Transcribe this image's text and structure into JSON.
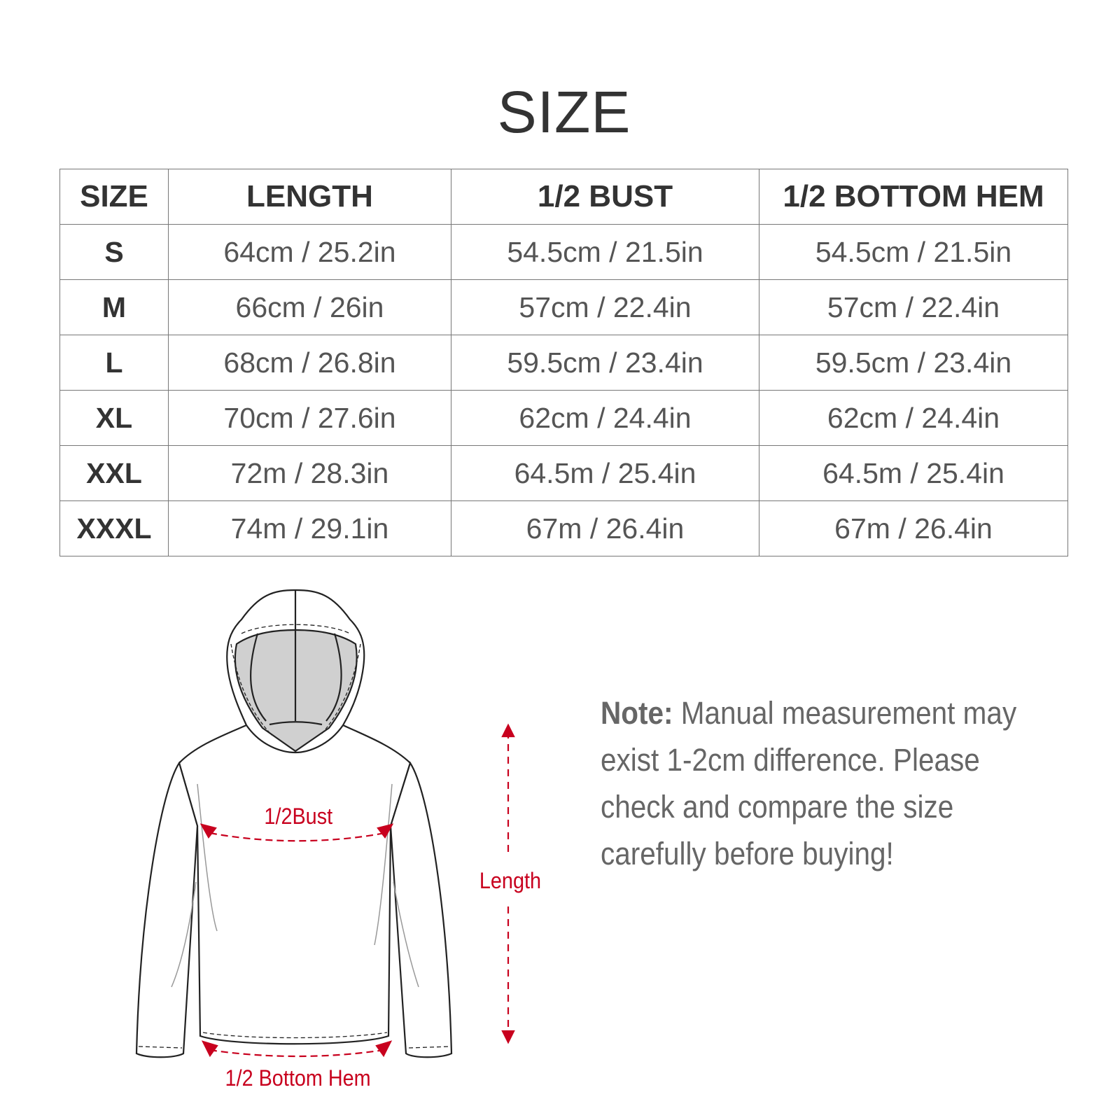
{
  "title": "SIZE",
  "table": {
    "headers": [
      "SIZE",
      "LENGTH",
      "1/2 BUST",
      "1/2 BOTTOM HEM"
    ],
    "rows": [
      [
        "S",
        "64cm / 25.2in",
        "54.5cm / 21.5in",
        "54.5cm / 21.5in"
      ],
      [
        "M",
        "66cm / 26in",
        "57cm / 22.4in",
        "57cm / 22.4in"
      ],
      [
        "L",
        "68cm / 26.8in",
        "59.5cm / 23.4in",
        "59.5cm / 23.4in"
      ],
      [
        "XL",
        "70cm / 27.6in",
        "62cm / 24.4in",
        "62cm / 24.4in"
      ],
      [
        "XXL",
        "72m / 28.3in",
        "64.5m / 25.4in",
        "64.5m / 25.4in"
      ],
      [
        "XXXL",
        "74m / 29.1in",
        "67m / 26.4in",
        "67m / 26.4in"
      ]
    ]
  },
  "diagram": {
    "bust_label": "1/2Bust",
    "length_label": "Length",
    "hem_label": "1/2 Bottom Hem",
    "accent_color": "#c8001e"
  },
  "note": {
    "prefix": "Note:",
    "text": " Manual measurement may exist 1-2cm difference. Please check and compare the size carefully before buying!"
  }
}
